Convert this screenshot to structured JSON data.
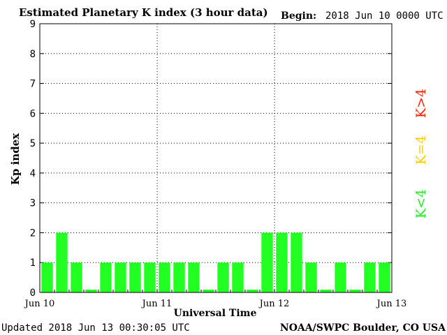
{
  "chart_data": {
    "type": "bar",
    "title": "Estimated Planetary K index (3 hour data)",
    "begin_label": "Begin:",
    "begin_value": "2018 Jun 10 0000 UTC",
    "xlabel": "Universal Time",
    "ylabel": "Kp index",
    "ylim": [
      0,
      9
    ],
    "yticks": [
      "0",
      "1",
      "2",
      "3",
      "4",
      "5",
      "6",
      "7",
      "8",
      "9"
    ],
    "xticks": [
      "Jun 10",
      "Jun 11",
      "Jun 12",
      "Jun 13"
    ],
    "grid": true,
    "values": [
      1,
      2,
      1,
      0,
      1,
      1,
      1,
      1,
      1,
      1,
      1,
      0,
      1,
      1,
      0,
      2,
      2,
      2,
      1,
      0,
      1,
      0,
      1,
      1
    ],
    "legend": [
      {
        "label": "K>4",
        "color": "#ff2200"
      },
      {
        "label": "K=4",
        "color": "#ffcc00"
      },
      {
        "label": "K<4",
        "color": "#22ee22"
      }
    ],
    "bar_color": "#22ff22",
    "updated": "Updated 2018 Jun 13 00:30:05 UTC",
    "source": "NOAA/SWPC Boulder, CO USA"
  }
}
